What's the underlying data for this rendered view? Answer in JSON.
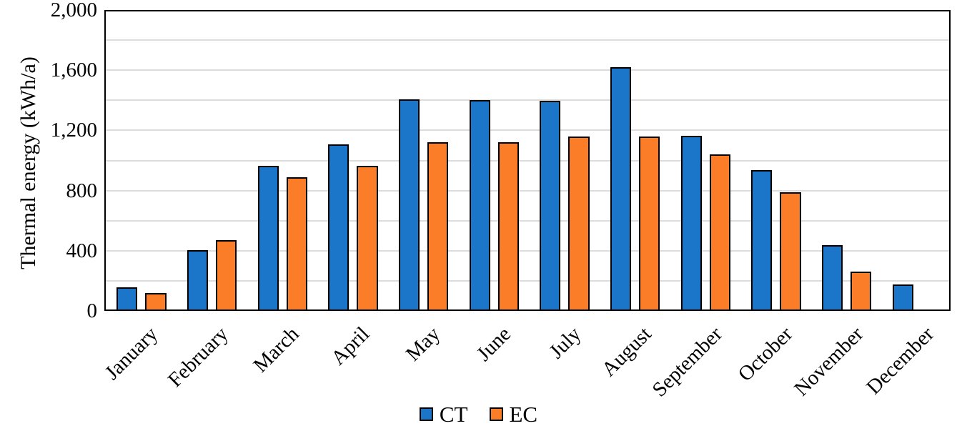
{
  "figure": {
    "background": "#ffffff",
    "plot_border_color": "#000000"
  },
  "chart_data": {
    "type": "bar",
    "title": "",
    "xlabel": "",
    "ylabel": "Thermal energy (kWh/a)",
    "ylim": [
      0,
      2000
    ],
    "y_label_interval": 400,
    "y_gridline_interval": 200,
    "y_tick_labels": [
      "0",
      "400",
      "800",
      "1,200",
      "1,600",
      "2,000"
    ],
    "grid": true,
    "gridline_color": "#DCDCDC",
    "legend_position": "bottom-center",
    "x_tick_rotation_deg": 45,
    "categories": [
      "January",
      "February",
      "March",
      "April",
      "May",
      "June",
      "July",
      "August",
      "September",
      "October",
      "November",
      "December"
    ],
    "series": [
      {
        "name": "CT",
        "color": "#1B75C8",
        "values": [
          155,
          405,
          965,
          1105,
          1405,
          1400,
          1395,
          1620,
          1165,
          935,
          435,
          175
        ]
      },
      {
        "name": "EC",
        "color": "#FB7D28",
        "values": [
          120,
          470,
          890,
          965,
          1120,
          1120,
          1160,
          1160,
          1040,
          790,
          260,
          null
        ]
      }
    ],
    "bar_border_color": "#000000"
  },
  "legend": {
    "items": [
      {
        "label": "CT",
        "color": "#1B75C8"
      },
      {
        "label": "EC",
        "color": "#FB7D28"
      }
    ]
  }
}
